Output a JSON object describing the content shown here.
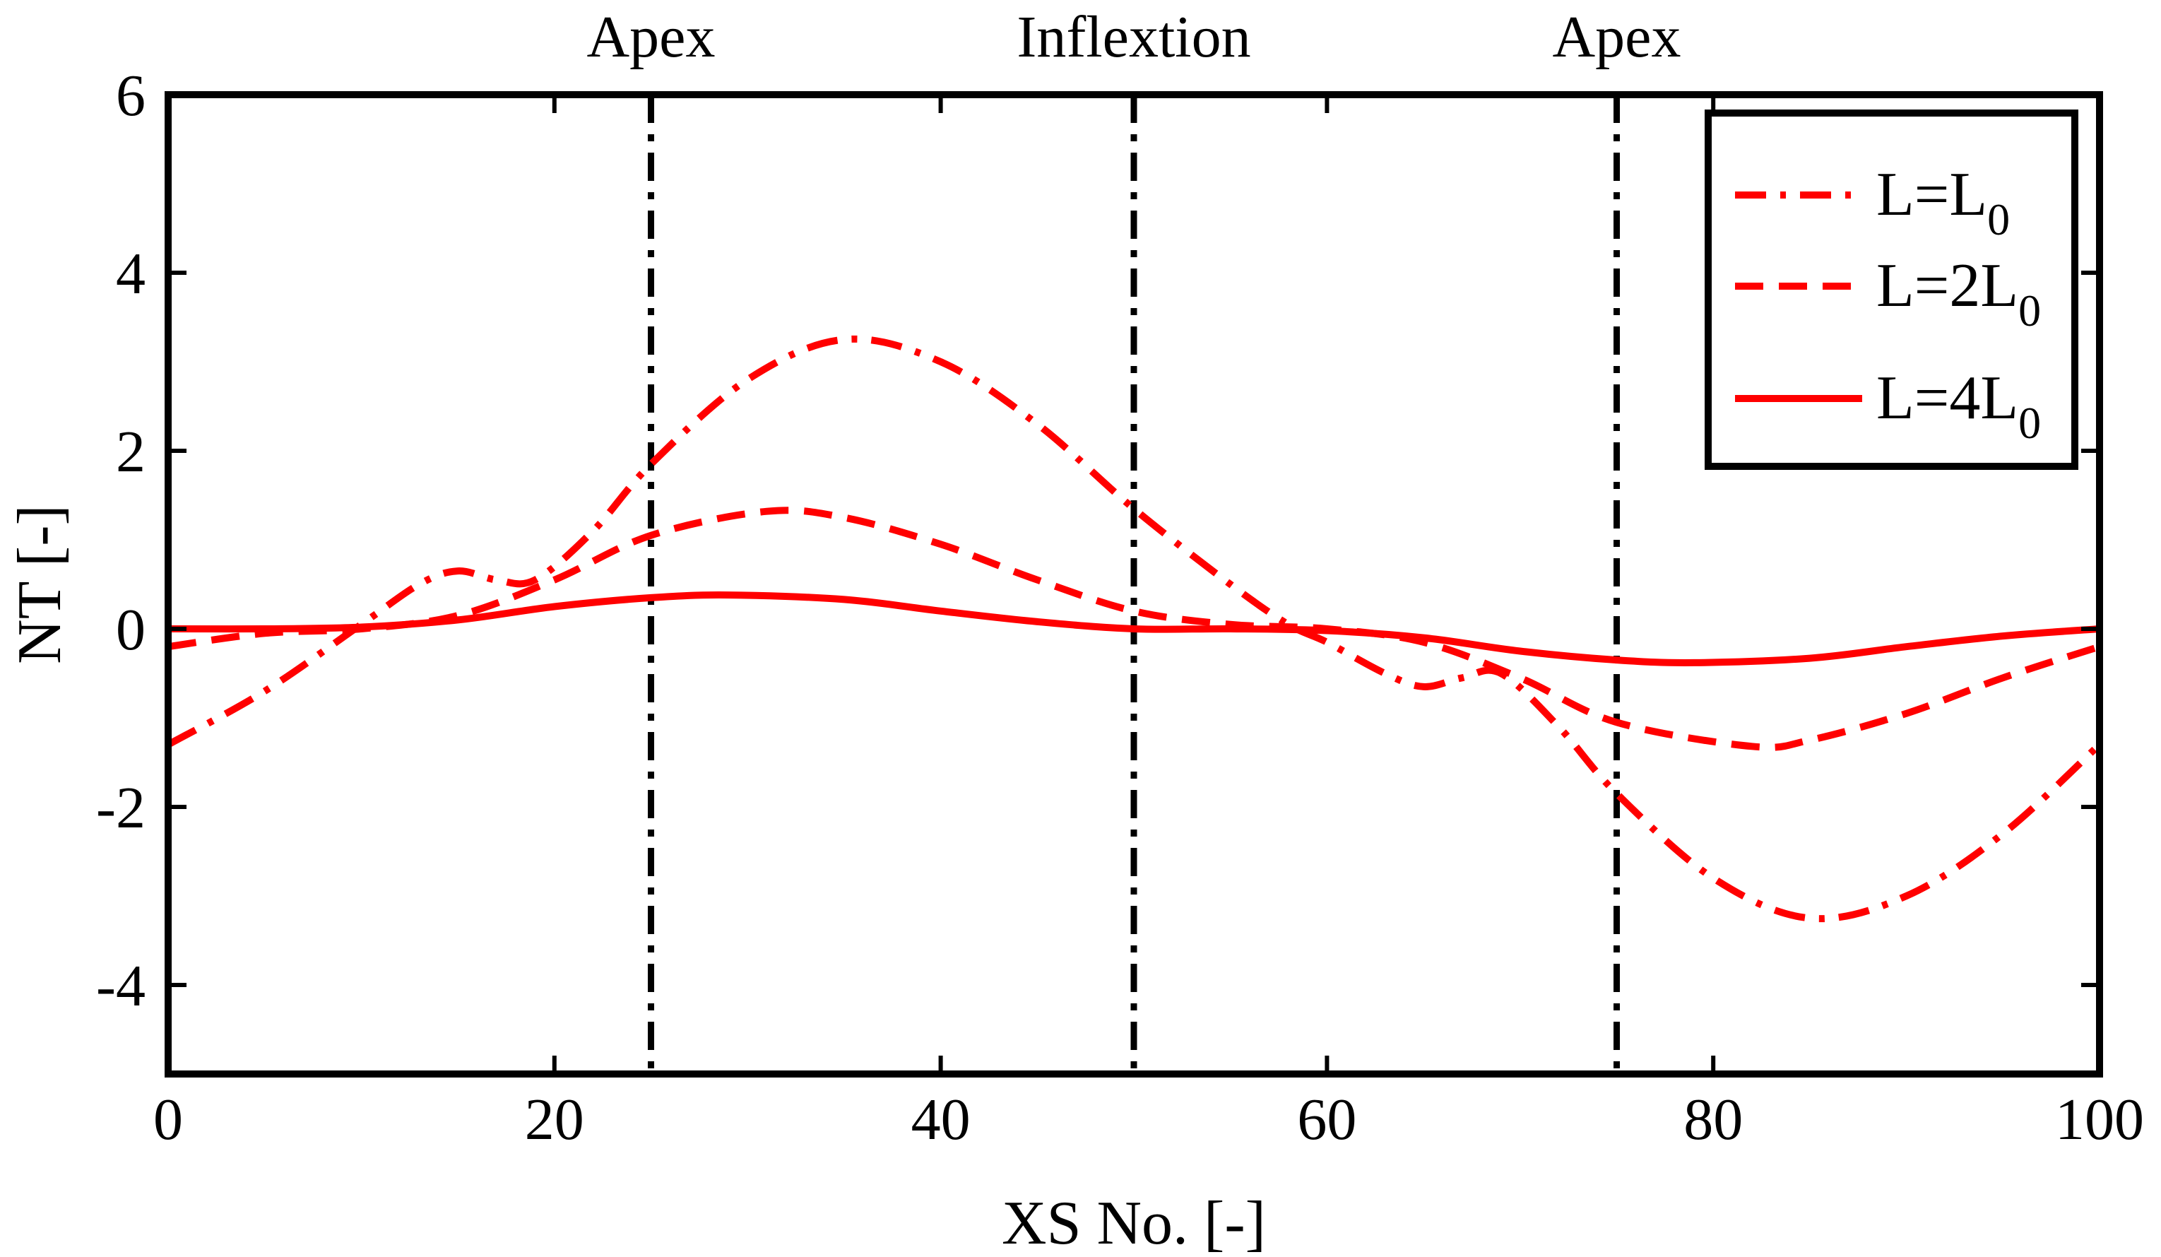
{
  "chart_data": {
    "type": "line",
    "title": "",
    "xlabel": "XS No. [-]",
    "ylabel": "NT [-]",
    "xlim": [
      0,
      100
    ],
    "ylim": [
      -5,
      6
    ],
    "xticks": [
      0,
      20,
      40,
      60,
      80,
      100
    ],
    "yticks": [
      -4,
      -2,
      0,
      2,
      4,
      6
    ],
    "grid": false,
    "legend_position": "top-right",
    "colors": {
      "series": "#ff0000",
      "axes": "#000000",
      "markers": "#000000"
    },
    "vertical_markers": [
      {
        "x": 25,
        "label": "Apex"
      },
      {
        "x": 50,
        "label": "Inflextion"
      },
      {
        "x": 75,
        "label": "Apex"
      }
    ],
    "series": [
      {
        "name": "L=L0",
        "legend_label": "L=L",
        "legend_subscript": "0",
        "style": "dashdot",
        "x": [
          0,
          5,
          10,
          13,
          15,
          17,
          19,
          22,
          25,
          30,
          35,
          40,
          45,
          50,
          55,
          58,
          60,
          63,
          65,
          67,
          69,
          72,
          75,
          80,
          85,
          90,
          95,
          100
        ],
        "y": [
          -1.3,
          -0.7,
          0.05,
          0.5,
          0.65,
          0.55,
          0.55,
          1.1,
          1.85,
          2.8,
          3.25,
          3.0,
          2.3,
          1.35,
          0.5,
          0.05,
          -0.15,
          -0.5,
          -0.65,
          -0.55,
          -0.5,
          -1.1,
          -1.85,
          -2.8,
          -3.25,
          -3.0,
          -2.3,
          -1.3
        ]
      },
      {
        "name": "L=2L0",
        "legend_label": "L=2L",
        "legend_subscript": "0",
        "style": "dashed",
        "x": [
          0,
          5,
          10,
          15,
          20,
          25,
          31,
          35,
          40,
          45,
          50,
          55,
          60,
          65,
          70,
          75,
          82,
          85,
          90,
          95,
          100
        ],
        "y": [
          -0.2,
          -0.05,
          0.0,
          0.15,
          0.55,
          1.05,
          1.32,
          1.25,
          0.95,
          0.55,
          0.2,
          0.05,
          0.0,
          -0.15,
          -0.55,
          -1.05,
          -1.32,
          -1.25,
          -0.95,
          -0.55,
          -0.2
        ]
      },
      {
        "name": "L=4L0",
        "legend_label": "L=4L",
        "legend_subscript": "0",
        "style": "solid",
        "x": [
          0,
          5,
          10,
          15,
          20,
          25,
          29,
          35,
          40,
          45,
          50,
          55,
          60,
          65,
          70,
          75,
          79,
          85,
          90,
          95,
          100
        ],
        "y": [
          0.0,
          0.0,
          0.02,
          0.1,
          0.25,
          0.35,
          0.38,
          0.33,
          0.2,
          0.08,
          0.0,
          0.0,
          -0.02,
          -0.1,
          -0.25,
          -0.35,
          -0.38,
          -0.33,
          -0.2,
          -0.08,
          0.0
        ]
      }
    ]
  }
}
